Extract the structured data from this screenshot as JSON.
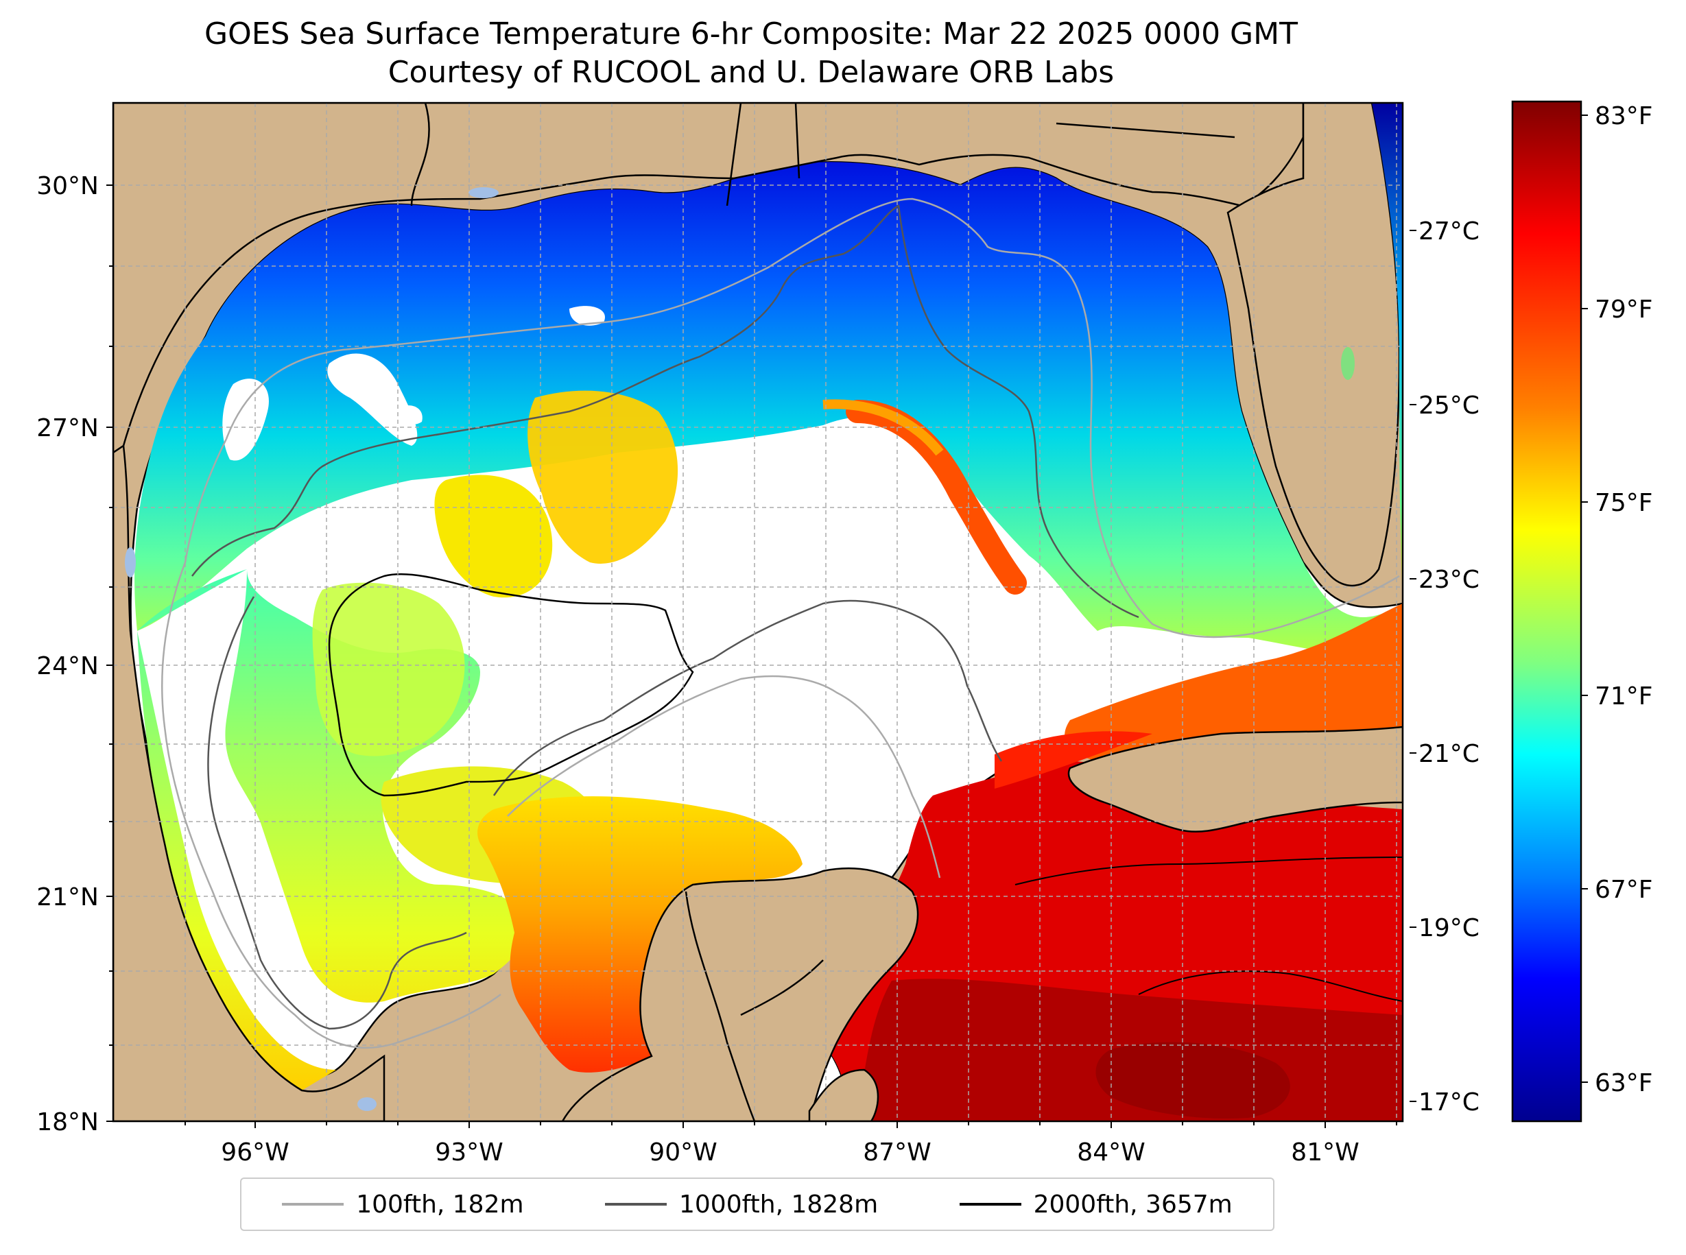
{
  "title": {
    "line1": "GOES Sea Surface Temperature 6-hr Composite: Mar 22 2025 0000 GMT",
    "line2": "Courtesy of RUCOOL and U. Delaware ORB Labs"
  },
  "map": {
    "region": "Gulf of Mexico",
    "lat_ticks": [
      "30°N",
      "27°N",
      "24°N",
      "21°N",
      "18°N"
    ],
    "lon_ticks": [
      "96°W",
      "93°W",
      "90°W",
      "87°W",
      "84°W",
      "81°W"
    ],
    "colors": {
      "land": "#d2b48c",
      "no_data": "#ffffff",
      "lakes": "#a2bfe6",
      "grid": "#aaaaaa"
    }
  },
  "colorbar": {
    "colormap": "jet",
    "fahrenheit_ticks": [
      "83°F",
      "79°F",
      "75°F",
      "71°F",
      "67°F",
      "63°F"
    ],
    "celsius_ticks": [
      "27°C",
      "25°C",
      "23°C",
      "21°C",
      "19°C",
      "17°C"
    ],
    "gradient": [
      "#800000",
      "#ff0000",
      "#ff8000",
      "#ffff00",
      "#80ff80",
      "#00ffff",
      "#0080ff",
      "#0000ff",
      "#00008f"
    ]
  },
  "legend": {
    "items": [
      {
        "label": "100fth, 182m",
        "color": "#aaaaaa"
      },
      {
        "label": "1000fth, 1828m",
        "color": "#555555"
      },
      {
        "label": "2000fth, 3657m",
        "color": "#000000"
      }
    ]
  }
}
